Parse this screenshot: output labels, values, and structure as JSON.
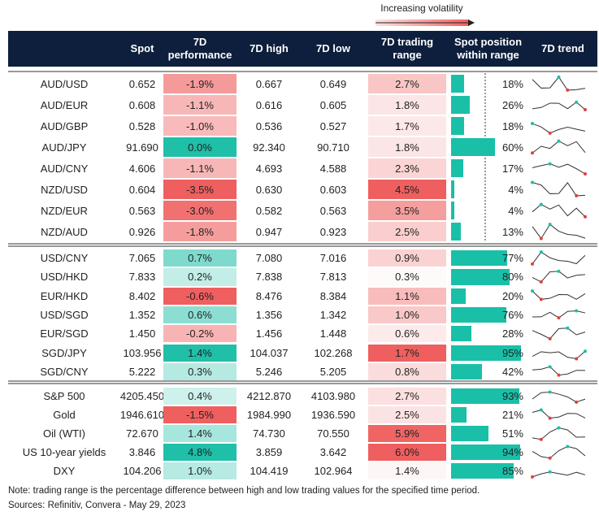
{
  "header": {
    "note": "Increasing volatility"
  },
  "columns": [
    "Spot",
    "7D performance",
    "7D high",
    "7D low",
    "7D trading range",
    "Spot position within range",
    "7D trend"
  ],
  "groups": [
    {
      "rows": [
        [
          "AUD/USD",
          "0.652",
          "-1.9%",
          "0.667",
          "0.649",
          "2.7%",
          "18%"
        ],
        [
          "AUD/EUR",
          "0.608",
          "-1.1%",
          "0.616",
          "0.605",
          "1.8%",
          "26%"
        ],
        [
          "AUD/GBP",
          "0.528",
          "-1.0%",
          "0.536",
          "0.527",
          "1.7%",
          "18%"
        ],
        [
          "AUD/JPY",
          "91.690",
          "0.0%",
          "92.340",
          "90.710",
          "1.8%",
          "60%"
        ],
        [
          "AUD/CNY",
          "4.606",
          "-1.1%",
          "4.693",
          "4.588",
          "2.3%",
          "17%"
        ],
        [
          "NZD/USD",
          "0.604",
          "-3.5%",
          "0.630",
          "0.603",
          "4.5%",
          "4%"
        ],
        [
          "NZD/EUR",
          "0.563",
          "-3.0%",
          "0.582",
          "0.563",
          "3.5%",
          "4%"
        ],
        [
          "NZD/AUD",
          "0.926",
          "-1.8%",
          "0.947",
          "0.923",
          "2.5%",
          "13%"
        ]
      ]
    },
    {
      "rows": [
        [
          "USD/CNY",
          "7.065",
          "0.7%",
          "7.080",
          "7.016",
          "0.9%",
          "77%"
        ],
        [
          "USD/HKD",
          "7.833",
          "0.2%",
          "7.838",
          "7.813",
          "0.3%",
          "80%"
        ],
        [
          "EUR/HKD",
          "8.402",
          "-0.6%",
          "8.476",
          "8.384",
          "1.1%",
          "20%"
        ],
        [
          "USD/SGD",
          "1.352",
          "0.6%",
          "1.356",
          "1.342",
          "1.0%",
          "76%"
        ],
        [
          "EUR/SGD",
          "1.450",
          "-0.2%",
          "1.456",
          "1.448",
          "0.6%",
          "28%"
        ],
        [
          "SGD/JPY",
          "103.956",
          "1.4%",
          "104.037",
          "102.268",
          "1.7%",
          "95%"
        ],
        [
          "SGD/CNY",
          "5.222",
          "0.3%",
          "5.246",
          "5.205",
          "0.8%",
          "42%"
        ]
      ]
    },
    {
      "rows": [
        [
          "S&P 500",
          "4205.450",
          "0.4%",
          "4212.870",
          "4103.980",
          "2.7%",
          "93%"
        ],
        [
          "Gold",
          "1946.610",
          "-1.5%",
          "1984.990",
          "1936.590",
          "2.5%",
          "21%"
        ],
        [
          "Oil (WTI)",
          "72.670",
          "1.4%",
          "74.730",
          "70.550",
          "5.9%",
          "51%"
        ],
        [
          "US 10-year yields",
          "3.846",
          "4.8%",
          "3.859",
          "3.642",
          "6.0%",
          "94%"
        ],
        [
          "DXY",
          "104.206",
          "1.0%",
          "104.419",
          "102.964",
          "1.4%",
          "85%"
        ]
      ]
    }
  ],
  "footer": [
    "Note: trading range is the percentage difference between high and low trading values for the specified time period.",
    "Sources: Refinitiv, Convera - May 29, 2023"
  ]
}
